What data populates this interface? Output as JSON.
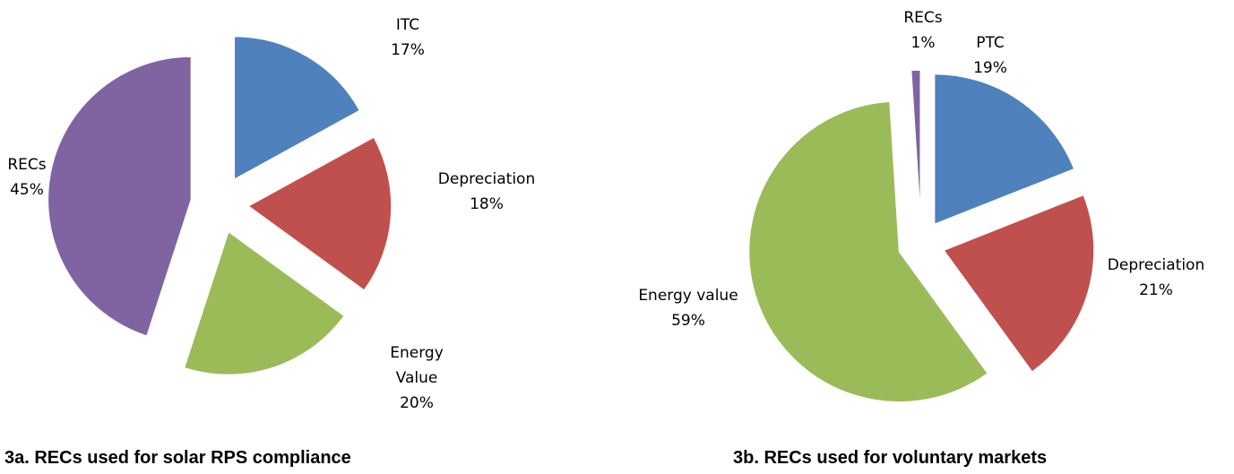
{
  "chart_data": [
    {
      "type": "pie",
      "title": "3a. RECs used for solar RPS compliance",
      "categories": [
        "ITC",
        "Depreciation",
        "Energy Value",
        "RECs"
      ],
      "values": [
        17,
        18,
        20,
        45
      ],
      "value_labels": [
        "17%",
        "18%",
        "20%",
        "45%"
      ],
      "colors": [
        "#4f81bd",
        "#c0504d",
        "#9bbb59",
        "#8064a2"
      ]
    },
    {
      "type": "pie",
      "title": "3b. RECs used for voluntary markets",
      "categories": [
        "PTC",
        "Depreciation",
        "Energy value",
        "RECs"
      ],
      "values": [
        19,
        21,
        59,
        1
      ],
      "value_labels": [
        "19%",
        "21%",
        "59%",
        "1%"
      ],
      "colors": [
        "#4f81bd",
        "#c0504d",
        "#9bbb59",
        "#8064a2"
      ]
    }
  ]
}
